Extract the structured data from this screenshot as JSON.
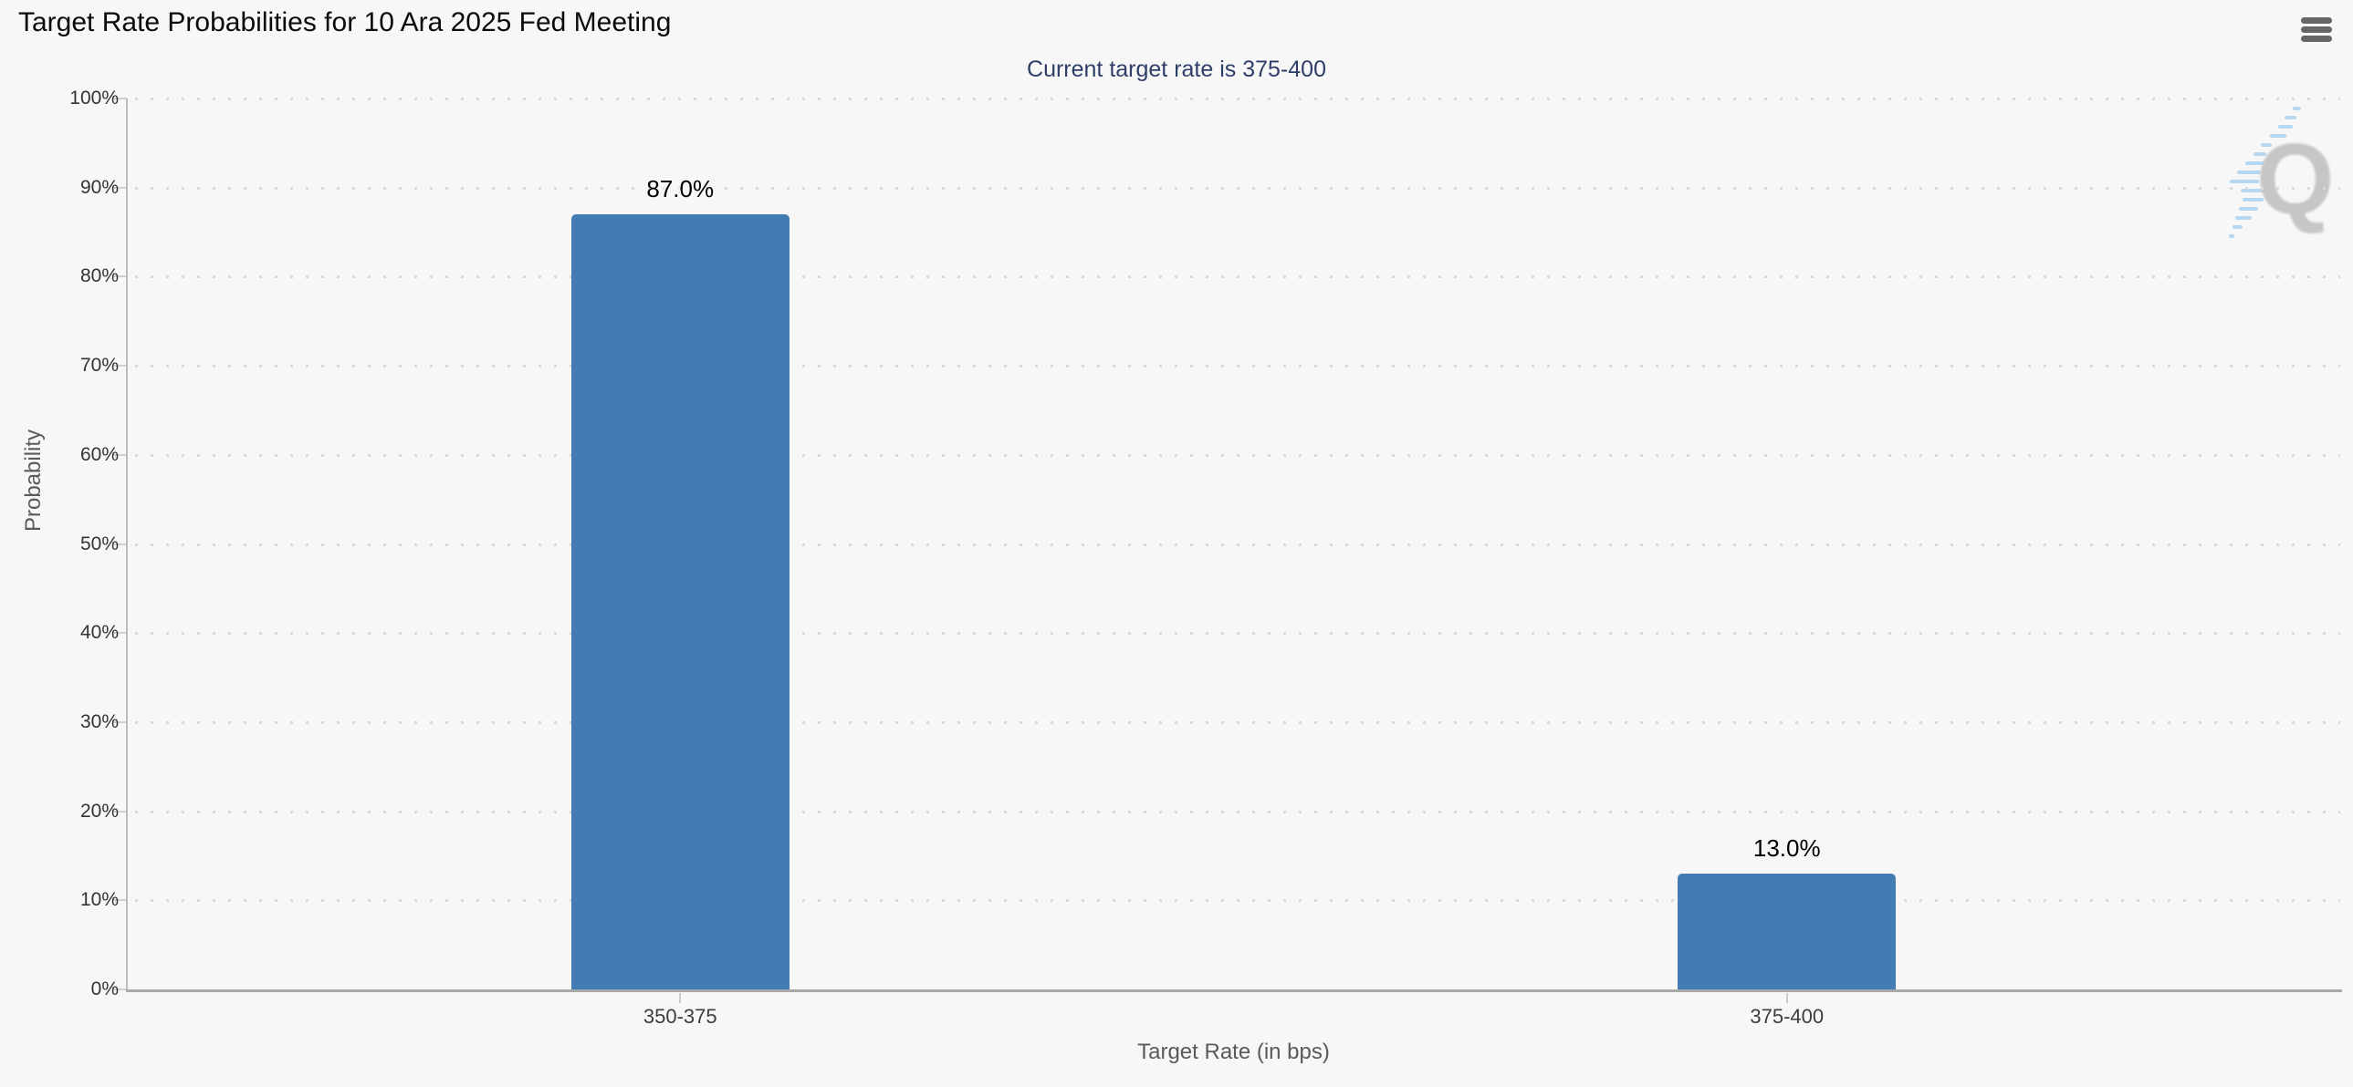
{
  "header": {
    "title": "Target Rate Probabilities for 10 Ara 2025 Fed Meeting",
    "subtitle": "Current target rate is 375-400"
  },
  "menu": {
    "icon": "hamburger-icon",
    "tooltip": "Chart context menu"
  },
  "watermark": {
    "letter": "Q"
  },
  "colors": {
    "background": "#f7f7f7",
    "bar": "#437cb2",
    "subtitle_text": "#2e3e68",
    "title_text": "#0b0b0b",
    "watermark_gray": "#c6c6c6",
    "watermark_blue": "#9fcdf0"
  },
  "chart_data": {
    "type": "bar",
    "title": "Target Rate Probabilities for 10 Ara 2025 Fed Meeting",
    "subtitle": "Current target rate is 375-400",
    "categories": [
      "350-375",
      "375-400"
    ],
    "values": [
      87.0,
      13.0
    ],
    "value_labels": [
      "87.0%",
      "13.0%"
    ],
    "xlabel": "Target Rate (in bps)",
    "ylabel": "Probability",
    "ylim": [
      0,
      100
    ],
    "ytick_step": 10,
    "ytick_labels": [
      "0%",
      "10%",
      "20%",
      "30%",
      "40%",
      "50%",
      "60%",
      "70%",
      "80%",
      "90%",
      "100%"
    ],
    "grid": "horizontal-dotted",
    "legend": "none",
    "bar_color": "#437cb2"
  }
}
